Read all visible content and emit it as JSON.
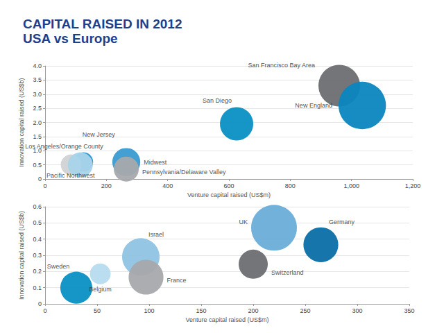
{
  "title": "CAPITAL RAISED IN 2012",
  "subtitle": "USA vs Europe",
  "chart_data": [
    {
      "type": "scatter",
      "x_label": "Venture capital raised (US$m)",
      "y_label": "Innovation capital raised (US$b)",
      "xlim": [
        0,
        1200
      ],
      "xticks": [
        0,
        200,
        400,
        600,
        800,
        {
          "value": 1000,
          "label": "1,000"
        },
        {
          "value": 1200,
          "label": "1,200"
        }
      ],
      "ylim": [
        0,
        4
      ],
      "yticks": [
        0,
        0.5,
        {
          "value": 1,
          "label": "1.0"
        },
        1.5,
        {
          "value": 2,
          "label": "2.0"
        },
        2.5,
        {
          "value": 3,
          "label": "3.0"
        },
        3.5,
        {
          "value": 4,
          "label": "4.0"
        }
      ],
      "grid": true,
      "labels": [
        "San Francisco Bay Area",
        "New England",
        "San Diego",
        "Midwest",
        "Pennsylvania/Delaware Valley",
        "New Jersey",
        "Los Angeles/Orange County",
        "Pacific Northwest"
      ],
      "x": [
        960,
        1035,
        625,
        265,
        265,
        125,
        85,
        115
      ],
      "values": [
        3.3,
        2.6,
        1.95,
        0.6,
        0.35,
        0.6,
        0.5,
        0.5
      ],
      "sizes": [
        100,
        130,
        64,
        45,
        36,
        22,
        25,
        36
      ],
      "colors": [
        "#6d6e71",
        "#0a86c0",
        "#0a8fc4",
        "#3a9ad0",
        "#a7a9ac",
        "#2592cc",
        "#d0d2d3",
        "#a9d4ea"
      ]
    },
    {
      "type": "scatter",
      "x_label": "Venture capital raised (US$m)",
      "y_label": "Innovation capital raised (US$b)",
      "xlim": [
        0,
        350
      ],
      "xticks": [
        0,
        50,
        100,
        150,
        200,
        250,
        300,
        350
      ],
      "ylim": [
        0,
        0.6
      ],
      "yticks": [
        0,
        0.1,
        0.2,
        0.3,
        0.4,
        0.5,
        0.6
      ],
      "grid": true,
      "labels": [
        "UK",
        "Germany",
        "Switzerland",
        "Israel",
        "France",
        "Belgium",
        "Sweden"
      ],
      "x": [
        220,
        265,
        200,
        92,
        97,
        53,
        30
      ],
      "values": [
        0.47,
        0.365,
        0.245,
        0.29,
        0.165,
        0.185,
        0.1
      ],
      "sizes": [
        121,
        70,
        49,
        81,
        70,
        25,
        59
      ],
      "colors": [
        "#6aaed8",
        "#0a6fa8",
        "#6d6e71",
        "#8fc3e3",
        "#a7a9ac",
        "#b7dbef",
        "#0a8fc4"
      ]
    }
  ]
}
